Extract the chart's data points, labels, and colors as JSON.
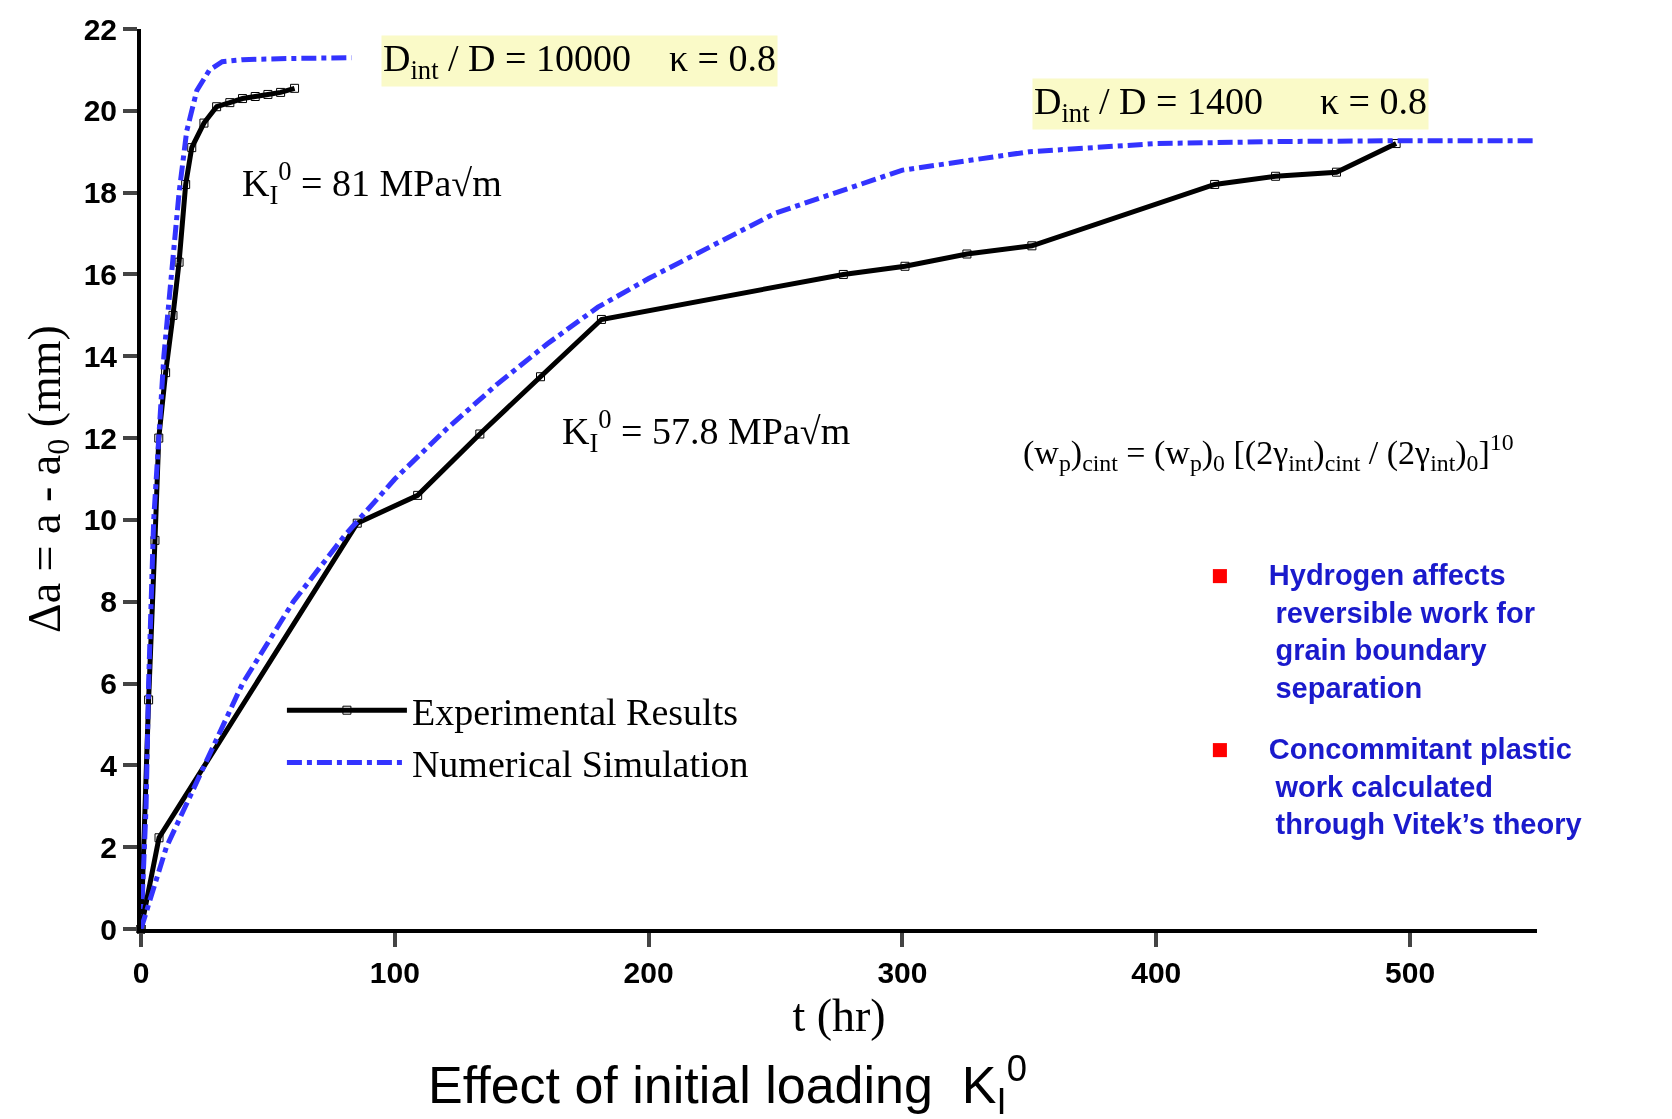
{
  "chart_data": {
    "type": "line",
    "title": "Effect of initial loading  K$_{I}$$^{0}$",
    "xlabel": "t (hr)",
    "ylabel": "Δa = a - a$_{0}$ (mm)",
    "xlim": [
      0,
      550
    ],
    "xticks": [
      0,
      100,
      200,
      300,
      400,
      500
    ],
    "ylim": [
      0,
      22
    ],
    "yticks": [
      0,
      2,
      4,
      6,
      8,
      10,
      12,
      14,
      16,
      18,
      20,
      22
    ],
    "legend": "bottom",
    "series": [
      {
        "name": "Experimental Results",
        "color": "#000000",
        "marker": "square",
        "line_style": "solid",
        "x": [
          0,
          3,
          5.5,
          7,
          9.7,
          12.6,
          15,
          17.6,
          20,
          24.8,
          29.8,
          35,
          40,
          45,
          50,
          55,
          60.5
        ],
        "values": [
          0,
          5.6,
          9.5,
          12,
          13.6,
          15,
          16.3,
          18.2,
          19.1,
          19.7,
          20.1,
          20.2,
          20.3,
          20.35,
          20.4,
          20.45,
          20.55
        ]
      },
      {
        "name": "Numerical Simulation",
        "color": "#3333ff",
        "marker": "none",
        "line_style": "dashed",
        "x": [
          0,
          2,
          3,
          4,
          5,
          7,
          9,
          12,
          15,
          18,
          22,
          27,
          32,
          40,
          60,
          83
        ],
        "values": [
          0,
          3,
          6,
          8,
          10,
          12,
          14,
          16,
          18,
          19.5,
          20.5,
          21,
          21.2,
          21.25,
          21.28,
          21.3
        ]
      },
      {
        "color": "#000000",
        "marker": "square",
        "line_style": "solid",
        "x": [
          0,
          7.1,
          85.2,
          109,
          133.5,
          157.4,
          181.4,
          276.7,
          301,
          325.4,
          351,
          423,
          447,
          471,
          494.5
        ],
        "values": [
          0,
          2.23,
          9.92,
          10.6,
          12.1,
          13.5,
          14.9,
          16,
          16.2,
          16.5,
          16.7,
          18.2,
          18.4,
          18.5,
          19.2
        ]
      },
      {
        "color": "#3333ff",
        "marker": "none",
        "line_style": "dashed",
        "x": [
          0,
          10,
          25,
          40,
          60,
          80,
          100,
          120,
          140,
          160,
          180,
          200,
          250,
          300,
          350,
          400,
          450,
          500,
          549
        ],
        "values": [
          0,
          2,
          4,
          6,
          8,
          9.6,
          11,
          12.2,
          13.3,
          14.3,
          15.2,
          15.9,
          17.5,
          18.55,
          19,
          19.2,
          19.25,
          19.27,
          19.27
        ]
      }
    ],
    "annotations": [
      "D$_{int}$ / D = 10000    κ = 0.8",
      "D$_{int}$ / D = 1400      κ = 0.8",
      "K$_{I}$$^{0}$ = 81 MPa√m",
      "K$_{I}$$^{0}$ = 57.8 MPa√m",
      "(w$_{p}$)$_{cint}$ = (w$_{p}$)$_{0}$ [(2γ$_{int}$)$_{cint}$ / (2γ$_{int}$)$_{0}$]$^{10}$",
      "■ Hydrogen affects reversible work for grain boundary separation",
      "■ Concommitant plastic work calculated through Vitek’s theory"
    ]
  }
}
